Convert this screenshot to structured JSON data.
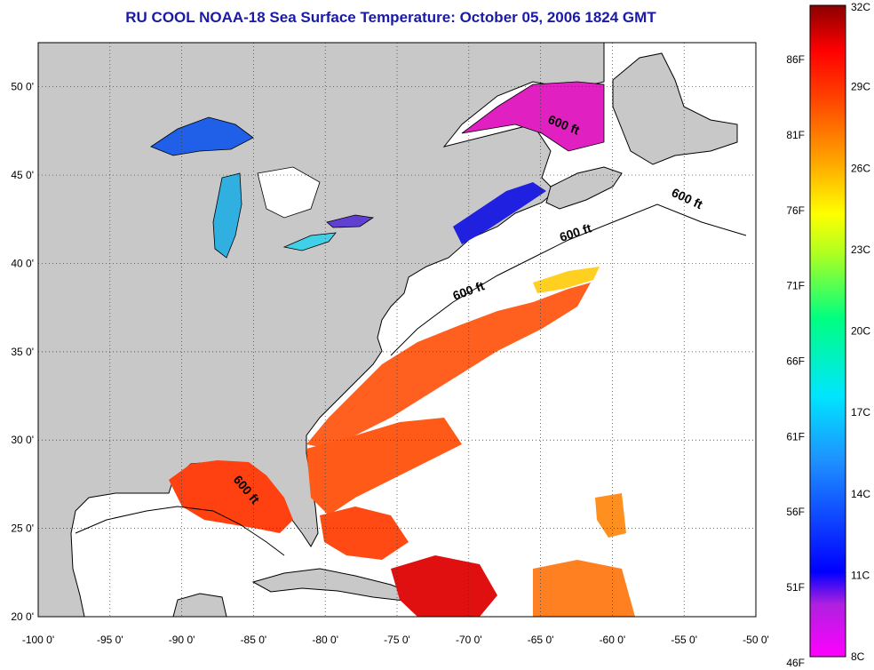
{
  "title": "RU COOL  NOAA-18  Sea Surface Temperature:  October 05, 2006 1824 GMT",
  "map": {
    "lon_ticks": [
      "-100 0'",
      "-95 0'",
      "-90 0'",
      "-85 0'",
      "-80 0'",
      "-75 0'",
      "-70 0'",
      "-65 0'",
      "-60 0'",
      "-55 0'",
      "-50 0'"
    ],
    "lat_ticks": [
      "50 0'",
      "45 0'",
      "40 0'",
      "35 0'",
      "30 0'",
      "25 0'",
      "20 0'"
    ],
    "lon_range": [
      -100,
      -50
    ],
    "lat_range": [
      20,
      52.5
    ],
    "grid": true,
    "land_color": "#c8c8c8",
    "isobath_labels": [
      "600 ft",
      "600 ft",
      "600 ft",
      "600 ft",
      "600 ft"
    ]
  },
  "colorbar": {
    "celsius_labels": [
      "32C",
      "29C",
      "26C",
      "23C",
      "20C",
      "17C",
      "14C",
      "11C",
      "8C"
    ],
    "fahrenheit_labels": [
      "86F",
      "81F",
      "76F",
      "71F",
      "66F",
      "61F",
      "56F",
      "51F",
      "46F"
    ],
    "range_c": [
      8,
      32
    ],
    "colors": [
      "#ff00ff",
      "#8a2be2",
      "#0000ff",
      "#1e90ff",
      "#00e5ff",
      "#00ff7f",
      "#adff2f",
      "#ffff00",
      "#ffa500",
      "#ff4500",
      "#ff0000",
      "#8b0000"
    ]
  }
}
